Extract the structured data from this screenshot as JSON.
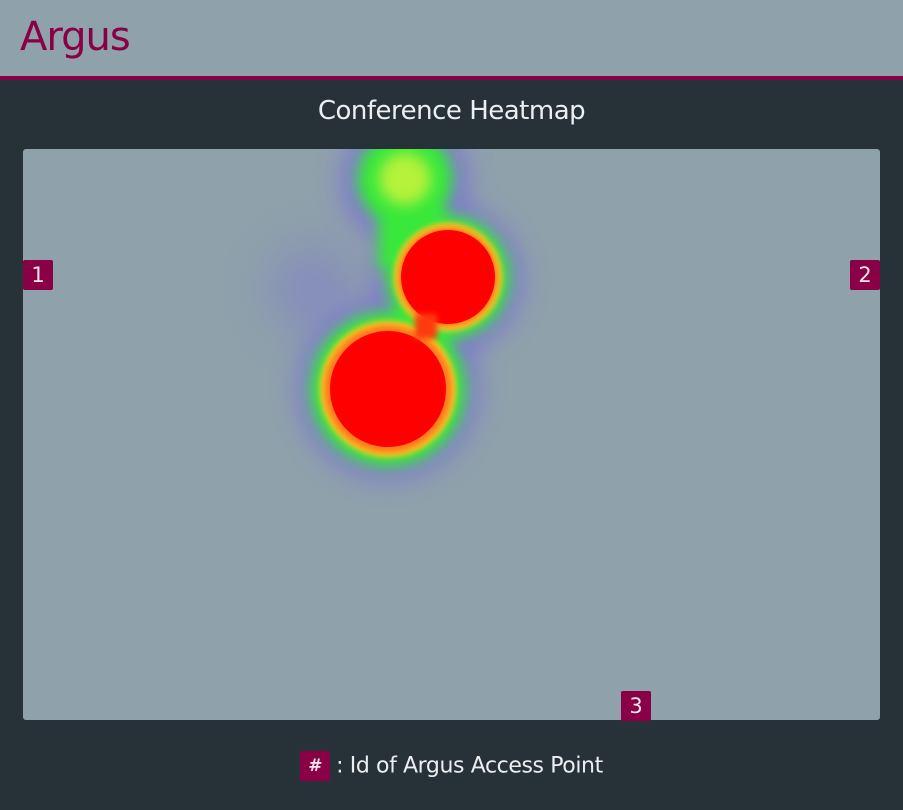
{
  "app": {
    "brand": "Argus"
  },
  "colors": {
    "header_bg": "#8fa1ab",
    "accent": "#8a0046",
    "page_bg": "#263238",
    "map_bg": "#8fa1ab"
  },
  "heatmap": {
    "title": "Conference Heatmap",
    "access_points": [
      {
        "id": "1"
      },
      {
        "id": "2"
      },
      {
        "id": "3"
      }
    ]
  },
  "legend": {
    "marker": "#",
    "text": ": Id of Argus Access Point"
  }
}
